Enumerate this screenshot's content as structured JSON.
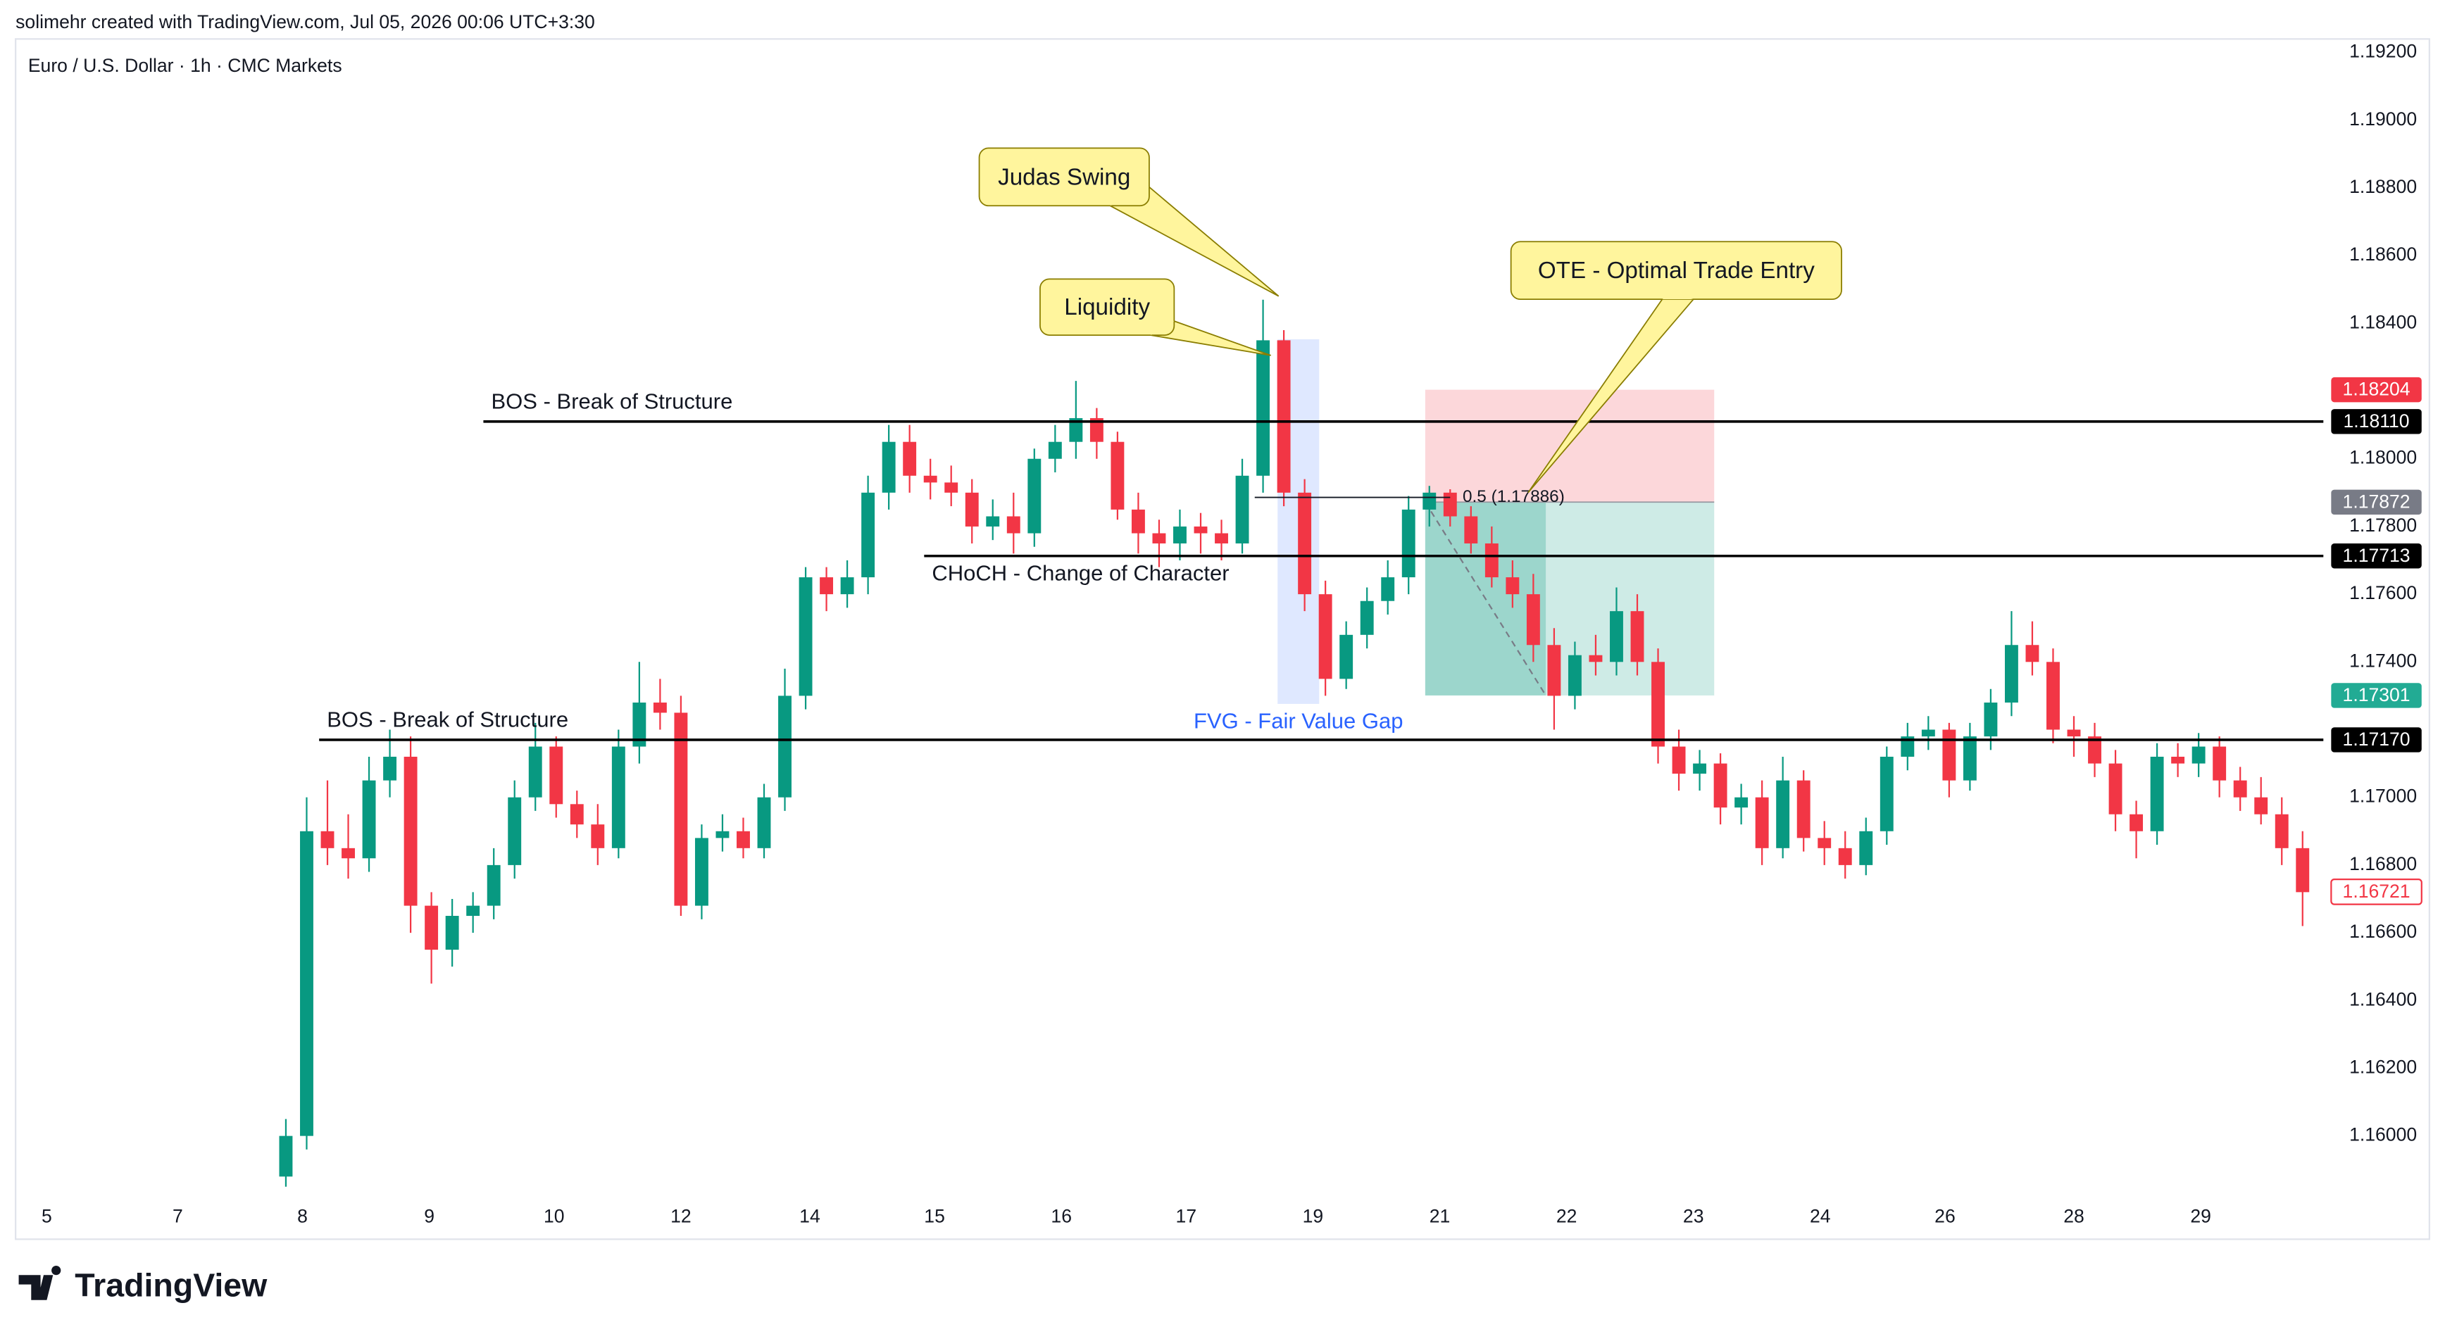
{
  "header": {
    "attribution": "solimehr created with TradingView.com, Jul 05, 2026 00:06 UTC+3:30",
    "symbol": "Euro / U.S. Dollar · 1h · CMC Markets"
  },
  "logo": "TradingView",
  "chart_data": {
    "type": "candlestick",
    "up_color": "#089981",
    "down_color": "#f23645",
    "open": [
      1.1588,
      1.16,
      1.169,
      1.1685,
      1.1682,
      1.1705,
      1.1712,
      1.1668,
      1.1655,
      1.1665,
      1.1668,
      1.168,
      1.17,
      1.1715,
      1.1698,
      1.1692,
      1.1685,
      1.1715,
      1.1728,
      1.1725,
      1.1668,
      1.1688,
      1.169,
      1.1685,
      1.17,
      1.173,
      1.1765,
      1.176,
      1.1765,
      1.179,
      1.1805,
      1.1795,
      1.1793,
      1.179,
      1.178,
      1.1783,
      1.1778,
      1.18,
      1.1805,
      1.1812,
      1.1805,
      1.1785,
      1.1778,
      1.1775,
      1.178,
      1.1778,
      1.1775,
      1.1795,
      1.1835,
      1.179,
      1.176,
      1.1735,
      1.1748,
      1.1758,
      1.1765,
      1.1785,
      1.179,
      1.1783,
      1.1775,
      1.1765,
      1.176,
      1.1745,
      1.173,
      1.1742,
      1.174,
      1.1755,
      1.174,
      1.1715,
      1.1707,
      1.171,
      1.1697,
      1.17,
      1.1685,
      1.1705,
      1.1688,
      1.1685,
      1.168,
      1.169,
      1.1712,
      1.1718,
      1.172,
      1.1705,
      1.1718,
      1.1728,
      1.1745,
      1.174,
      1.172,
      1.1718,
      1.171,
      1.1695,
      1.169,
      1.1712,
      1.171,
      1.1715,
      1.1705,
      1.17,
      1.1695,
      1.1685
    ],
    "high": [
      1.1605,
      1.17,
      1.1705,
      1.1695,
      1.1712,
      1.172,
      1.1718,
      1.1672,
      1.167,
      1.1672,
      1.1685,
      1.1705,
      1.1722,
      1.1718,
      1.1702,
      1.1698,
      1.172,
      1.174,
      1.1735,
      1.173,
      1.1692,
      1.1695,
      1.1694,
      1.1704,
      1.1738,
      1.1768,
      1.1768,
      1.177,
      1.1795,
      1.181,
      1.181,
      1.18,
      1.1798,
      1.1794,
      1.1788,
      1.179,
      1.1803,
      1.181,
      1.1823,
      1.1815,
      1.1808,
      1.179,
      1.1782,
      1.1785,
      1.1784,
      1.1782,
      1.18,
      1.1847,
      1.1838,
      1.1794,
      1.1764,
      1.1752,
      1.1762,
      1.177,
      1.1789,
      1.1792,
      1.1791,
      1.1786,
      1.178,
      1.177,
      1.1766,
      1.175,
      1.1746,
      1.1748,
      1.1762,
      1.176,
      1.1744,
      1.172,
      1.1714,
      1.1713,
      1.1704,
      1.1705,
      1.1712,
      1.1708,
      1.1693,
      1.169,
      1.1694,
      1.1715,
      1.1722,
      1.1724,
      1.1722,
      1.1722,
      1.1732,
      1.1755,
      1.1752,
      1.1744,
      1.1724,
      1.1722,
      1.1714,
      1.1699,
      1.1716,
      1.1716,
      1.1719,
      1.1718,
      1.1709,
      1.1706,
      1.17,
      1.169
    ],
    "low": [
      1.1585,
      1.1596,
      1.168,
      1.1676,
      1.1678,
      1.17,
      1.166,
      1.1645,
      1.165,
      1.166,
      1.1664,
      1.1676,
      1.1696,
      1.1694,
      1.1688,
      1.168,
      1.1682,
      1.171,
      1.172,
      1.1665,
      1.1664,
      1.1684,
      1.1682,
      1.1682,
      1.1696,
      1.1726,
      1.1755,
      1.1756,
      1.176,
      1.1785,
      1.179,
      1.1788,
      1.1786,
      1.1775,
      1.1776,
      1.1772,
      1.1774,
      1.1796,
      1.18,
      1.18,
      1.1782,
      1.1772,
      1.1768,
      1.177,
      1.1772,
      1.177,
      1.1772,
      1.179,
      1.1786,
      1.1755,
      1.173,
      1.1732,
      1.1744,
      1.1754,
      1.176,
      1.178,
      1.178,
      1.1772,
      1.1762,
      1.1756,
      1.174,
      1.172,
      1.1726,
      1.1736,
      1.1736,
      1.1736,
      1.171,
      1.1702,
      1.1702,
      1.1692,
      1.1692,
      1.168,
      1.1682,
      1.1684,
      1.168,
      1.1676,
      1.1677,
      1.1686,
      1.1708,
      1.1714,
      1.17,
      1.1702,
      1.1714,
      1.1724,
      1.1736,
      1.1716,
      1.1712,
      1.1706,
      1.169,
      1.1682,
      1.1686,
      1.1706,
      1.1706,
      1.17,
      1.1696,
      1.1692,
      1.168,
      1.1662
    ],
    "close": [
      1.16,
      1.169,
      1.1685,
      1.1682,
      1.1705,
      1.1712,
      1.1668,
      1.1655,
      1.1665,
      1.1668,
      1.168,
      1.17,
      1.1715,
      1.1698,
      1.1692,
      1.1685,
      1.1715,
      1.1728,
      1.1725,
      1.1668,
      1.1688,
      1.169,
      1.1685,
      1.17,
      1.173,
      1.1765,
      1.176,
      1.1765,
      1.179,
      1.1805,
      1.1795,
      1.1793,
      1.179,
      1.178,
      1.1783,
      1.1778,
      1.18,
      1.1805,
      1.1812,
      1.1805,
      1.1785,
      1.1778,
      1.1775,
      1.178,
      1.1778,
      1.1775,
      1.1795,
      1.1835,
      1.179,
      1.176,
      1.1735,
      1.1748,
      1.1758,
      1.1765,
      1.1785,
      1.179,
      1.1783,
      1.1775,
      1.1765,
      1.176,
      1.1745,
      1.173,
      1.1742,
      1.174,
      1.1755,
      1.174,
      1.1715,
      1.1707,
      1.171,
      1.1697,
      1.17,
      1.1685,
      1.1705,
      1.1688,
      1.1685,
      1.168,
      1.169,
      1.1712,
      1.1718,
      1.172,
      1.1705,
      1.1718,
      1.1728,
      1.1745,
      1.174,
      1.172,
      1.1718,
      1.171,
      1.1695,
      1.169,
      1.1712,
      1.171,
      1.1715,
      1.1705,
      1.17,
      1.1695,
      1.1685,
      1.1672
    ],
    "xlim": [
      -13,
      98
    ],
    "xticks": [
      {
        "value": -11.5,
        "label": "5"
      },
      {
        "value": -5.2,
        "label": "7"
      },
      {
        "value": 0.8,
        "label": "8"
      },
      {
        "value": 6.9,
        "label": "9"
      },
      {
        "value": 12.9,
        "label": "10"
      },
      {
        "value": 19,
        "label": "12"
      },
      {
        "value": 25.2,
        "label": "14"
      },
      {
        "value": 31.2,
        "label": "15"
      },
      {
        "value": 37.3,
        "label": "16"
      },
      {
        "value": 43.3,
        "label": "17"
      },
      {
        "value": 49.4,
        "label": "19"
      },
      {
        "value": 55.5,
        "label": "21"
      },
      {
        "value": 61.6,
        "label": "22"
      },
      {
        "value": 67.7,
        "label": "23"
      },
      {
        "value": 73.8,
        "label": "24"
      },
      {
        "value": 79.8,
        "label": "26"
      },
      {
        "value": 86,
        "label": "28"
      },
      {
        "value": 92.1,
        "label": "29"
      }
    ],
    "ylim": [
      1.1581,
      1.1924
    ],
    "yticks": [
      {
        "value": 1.16,
        "label": "1.16000"
      },
      {
        "value": 1.162,
        "label": "1.16200"
      },
      {
        "value": 1.164,
        "label": "1.16400"
      },
      {
        "value": 1.166,
        "label": "1.16600"
      },
      {
        "value": 1.168,
        "label": "1.16800"
      },
      {
        "value": 1.17,
        "label": "1.17000"
      },
      {
        "value": 1.174,
        "label": "1.17400"
      },
      {
        "value": 1.176,
        "label": "1.17600"
      },
      {
        "value": 1.178,
        "label": "1.17800"
      },
      {
        "value": 1.18,
        "label": "1.18000"
      },
      {
        "value": 1.184,
        "label": "1.18400"
      },
      {
        "value": 1.186,
        "label": "1.18600"
      },
      {
        "value": 1.188,
        "label": "1.18800"
      },
      {
        "value": 1.19,
        "label": "1.19000"
      },
      {
        "value": 1.192,
        "label": "1.19200"
      }
    ],
    "grid": false,
    "levels": [
      {
        "label": "BOS - Break of Structure",
        "price": {
          "value": 1.1811,
          "label": "1.18110"
        },
        "x_start": 9.5,
        "label_side": "above"
      },
      {
        "label": "CHoCH - Change of Character",
        "price": {
          "value": 1.17713,
          "label": "1.17713"
        },
        "x_start": 30.7,
        "label_side": "below"
      },
      {
        "label": "BOS - Break of Structure",
        "price": {
          "value": 1.1717,
          "label": "1.17170"
        },
        "x_start": 1.6,
        "label_side": "above"
      }
    ],
    "fvg": {
      "label": "FVG - Fair Value Gap",
      "x": [
        47.7,
        49.7
      ],
      "y": [
        1.17276,
        1.18353
      ],
      "color": "#2962ff"
    },
    "position": {
      "x": [
        54.8,
        68.7
      ],
      "trade_close_x": 60.6,
      "stop": {
        "value": 1.18204,
        "label": "1.18204"
      },
      "entry": {
        "value": 1.17872,
        "label": "1.17872"
      },
      "target": {
        "value": 1.17301,
        "label": "1.17301"
      }
    },
    "fib": {
      "label": "0.5 (1.17886)",
      "value": 1.17886,
      "x": [
        46.6,
        56
      ]
    },
    "callouts": [
      {
        "text": "Judas Swing"
      },
      {
        "text": "Liquidity"
      },
      {
        "text": "OTE - Optimal Trade Entry"
      }
    ],
    "last_price": {
      "value": 1.16721,
      "label": "1.16721"
    }
  }
}
